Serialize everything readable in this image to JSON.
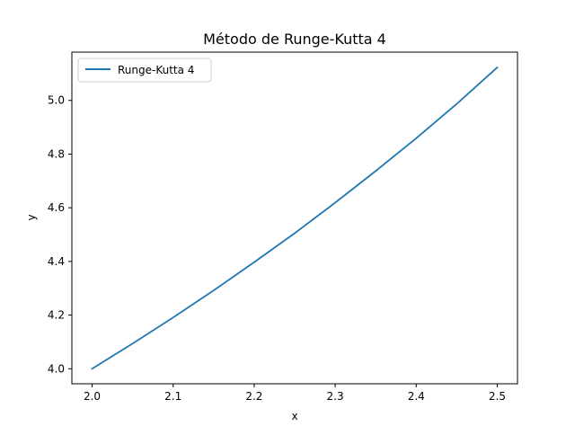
{
  "chart_data": {
    "type": "line",
    "title": "Método de Runge-Kutta 4",
    "xlabel": "x",
    "ylabel": "y",
    "xlim": [
      1.975,
      2.525
    ],
    "ylim": [
      3.944,
      5.18
    ],
    "grid": false,
    "legend_position": "upper left",
    "x_ticks": [
      2.0,
      2.1,
      2.2,
      2.3,
      2.4,
      2.5
    ],
    "x_tick_labels": [
      "2.0",
      "2.1",
      "2.2",
      "2.3",
      "2.4",
      "2.5"
    ],
    "y_ticks": [
      4.0,
      4.2,
      4.4,
      4.6,
      4.8,
      5.0
    ],
    "y_tick_labels": [
      "4.0",
      "4.2",
      "4.4",
      "4.6",
      "4.8",
      "5.0"
    ],
    "series": [
      {
        "name": "Runge-Kutta 4",
        "color": "#1f77b4",
        "x": [
          2.0,
          2.05,
          2.1,
          2.15,
          2.2,
          2.25,
          2.3,
          2.35,
          2.4,
          2.45,
          2.5
        ],
        "y": [
          4.0,
          4.094,
          4.191,
          4.292,
          4.397,
          4.505,
          4.619,
          4.737,
          4.859,
          4.987,
          5.123
        ]
      }
    ]
  }
}
